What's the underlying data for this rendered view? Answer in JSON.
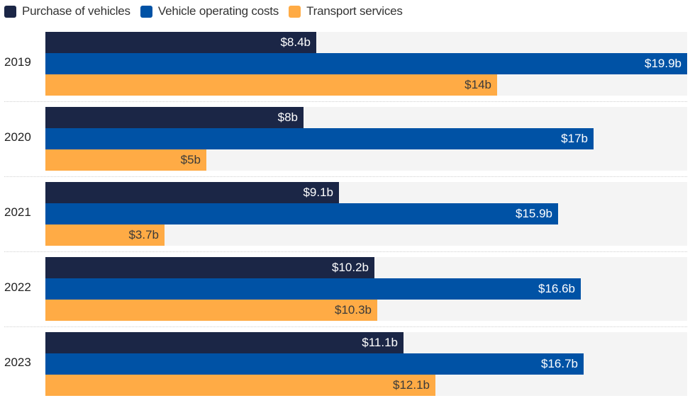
{
  "chart_data": {
    "type": "bar",
    "orientation": "horizontal",
    "title": "",
    "xlabel": "",
    "ylabel": "",
    "xlim": [
      0,
      19.9
    ],
    "grid": false,
    "legend_position": "top-left",
    "categories": [
      "2019",
      "2020",
      "2021",
      "2022",
      "2023"
    ],
    "series": [
      {
        "name": "Purchase of vehicles",
        "color": "#1b2646",
        "label_color": "#ffffff",
        "values": [
          8.4,
          8,
          9.1,
          10.2,
          11.1
        ],
        "labels": [
          "$8.4b",
          "$8b",
          "$9.1b",
          "$10.2b",
          "$11.1b"
        ]
      },
      {
        "name": "Vehicle operating costs",
        "color": "#0052a5",
        "label_color": "#ffffff",
        "values": [
          19.9,
          17,
          15.9,
          16.6,
          16.7
        ],
        "labels": [
          "$19.9b",
          "$17b",
          "$15.9b",
          "$16.6b",
          "$16.7b"
        ]
      },
      {
        "name": "Transport services",
        "color": "#ffab45",
        "label_color": "#3a3a3a",
        "values": [
          14,
          5,
          3.7,
          10.3,
          12.1
        ],
        "labels": [
          "$14b",
          "$5b",
          "$3.7b",
          "$10.3b",
          "$12.1b"
        ]
      }
    ]
  }
}
